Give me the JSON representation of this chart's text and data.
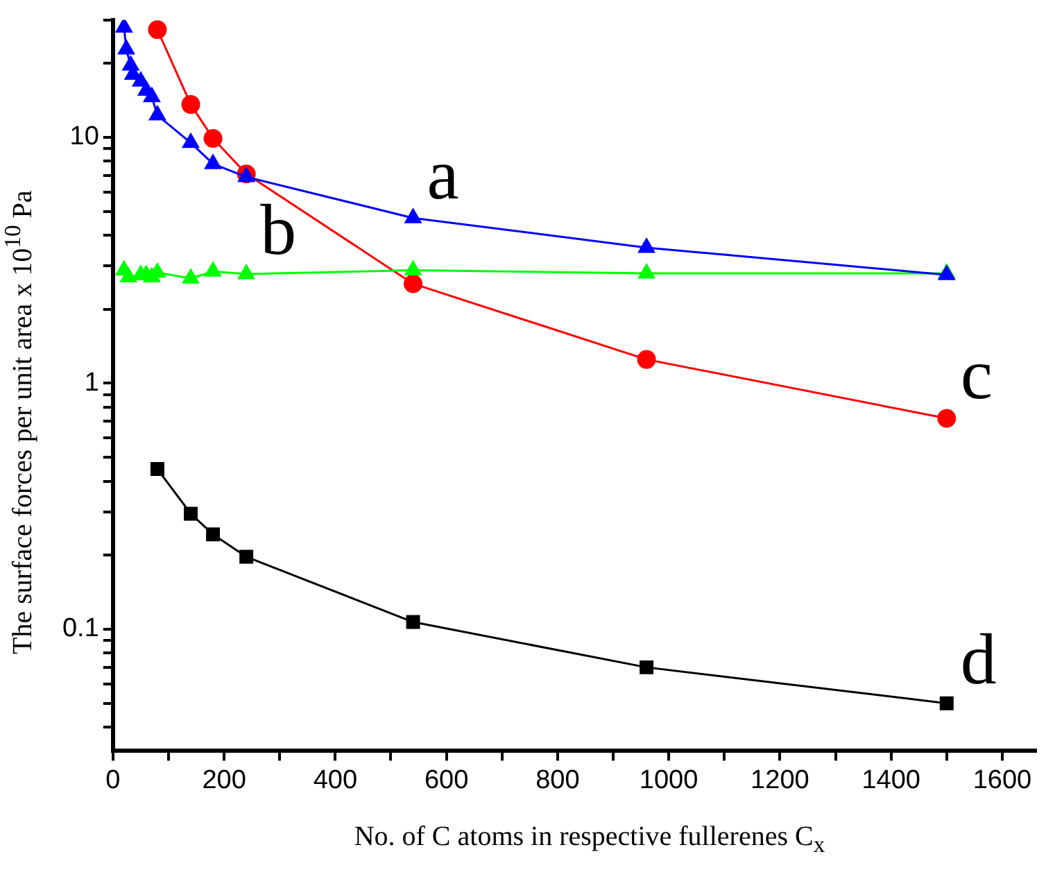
{
  "chart_data": {
    "type": "line",
    "xlabel": "No. of C atoms in respective fullerenes C$_{x}$",
    "ylabel": "The surface forces per unit area x 10$^{10}$ Pa",
    "log": "y",
    "grid": false,
    "legend": false,
    "xlim": [
      0,
      1660
    ],
    "xticks": [
      0,
      {
        "value": 100,
        "label": null
      },
      200,
      {
        "value": 300,
        "label": null
      },
      400,
      {
        "value": 500,
        "label": null
      },
      600,
      {
        "value": 700,
        "label": null
      },
      800,
      {
        "value": 900,
        "label": null
      },
      1000,
      {
        "value": 1100,
        "label": null
      },
      1200,
      {
        "value": 1300,
        "label": null
      },
      1400,
      {
        "value": 1500,
        "label": null
      },
      1600
    ],
    "ylim": [
      0.032,
      30
    ],
    "yticks": [
      {
        "value": 0.04,
        "label": null
      },
      {
        "value": 0.05,
        "label": null
      },
      {
        "value": 0.06,
        "label": null
      },
      {
        "value": 0.07,
        "label": null
      },
      {
        "value": 0.08,
        "label": null
      },
      {
        "value": 0.09,
        "label": null
      },
      0.1,
      {
        "value": 0.2,
        "label": null
      },
      {
        "value": 0.3,
        "label": null
      },
      {
        "value": 0.4,
        "label": null
      },
      {
        "value": 0.5,
        "label": null
      },
      {
        "value": 0.6,
        "label": null
      },
      {
        "value": 0.7,
        "label": null
      },
      {
        "value": 0.8,
        "label": null
      },
      {
        "value": 0.9,
        "label": null
      },
      1,
      {
        "value": 2,
        "label": null
      },
      {
        "value": 3,
        "label": null
      },
      {
        "value": 4,
        "label": null
      },
      {
        "value": 5,
        "label": null
      },
      {
        "value": 6,
        "label": null
      },
      {
        "value": 7,
        "label": null
      },
      {
        "value": 8,
        "label": null
      },
      {
        "value": 9,
        "label": null
      },
      10,
      {
        "value": 20,
        "label": null
      },
      {
        "value": 30,
        "label": null
      }
    ],
    "series": [
      {
        "color": "#0000ff",
        "marker": "triangle",
        "x": [
          20,
          24,
          32,
          36,
          50,
          60,
          70,
          80,
          140,
          180,
          240,
          540,
          960,
          1500
        ],
        "values": [
          28,
          22.8,
          19.6,
          18.0,
          16.9,
          15.5,
          14.6,
          12.3,
          9.5,
          7.8,
          6.9,
          4.7,
          3.56,
          2.76
        ]
      },
      {
        "color": "#00ff00",
        "marker": "triangle",
        "x": [
          20,
          28,
          50,
          60,
          70,
          80,
          140,
          180,
          240,
          540,
          960,
          1500
        ],
        "values": [
          2.88,
          2.7,
          2.76,
          2.76,
          2.7,
          2.82,
          2.67,
          2.85,
          2.78,
          2.88,
          2.8,
          2.8
        ]
      },
      {
        "color": "#ff0000",
        "marker": "circle",
        "x": [
          80,
          140,
          180,
          240,
          540,
          960,
          1500
        ],
        "values": [
          27.4,
          13.6,
          9.9,
          7.1,
          2.54,
          1.25,
          0.72
        ]
      },
      {
        "color": "#000000",
        "marker": "square",
        "x": [
          80,
          140,
          180,
          240,
          540,
          960,
          1500
        ],
        "values": [
          0.448,
          0.295,
          0.243,
          0.197,
          0.107,
          0.07,
          0.05
        ]
      }
    ],
    "annotations": [
      {
        "text": "a",
        "x": 540,
        "y": 4.7
      },
      {
        "text": "b",
        "x": 240,
        "y": 2.78
      },
      {
        "text": "c",
        "x": 1500,
        "y": 0.72
      },
      {
        "text": "d",
        "x": 1500,
        "y": 0.05
      }
    ]
  }
}
